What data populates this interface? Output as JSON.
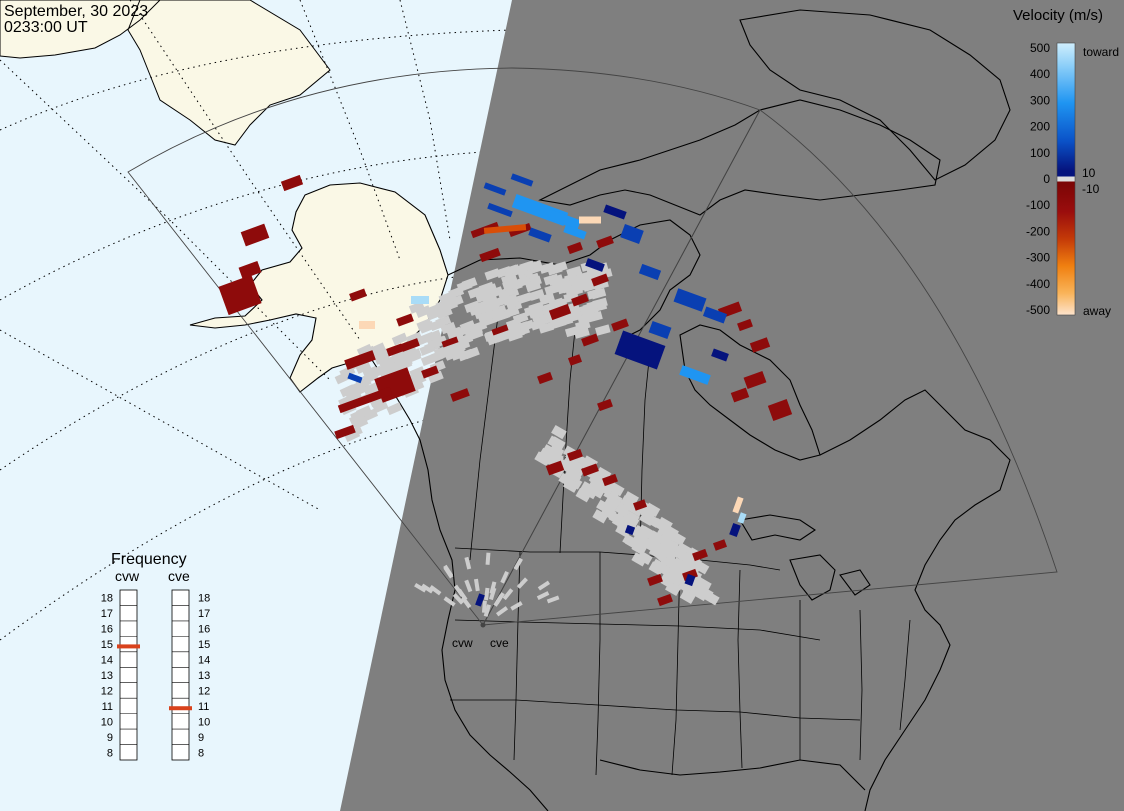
{
  "header": {
    "date": "September, 30 2023",
    "time": "0233:00 UT"
  },
  "colors": {
    "ocean_day": "#e8f6fd",
    "land_day": "#faf8e6",
    "night": "#7f7f7f",
    "gs_scatter": "#cdcdcd",
    "toward_light": "#a9dcf7",
    "toward_mid": "#1f95f2",
    "toward_dark": "#0a3fb2",
    "toward_deepest": "#05137d",
    "away_deepest": "#7a0505",
    "away_dark": "#8e0b0b",
    "away_mid": "#d94e08",
    "away_orange": "#f59a1a",
    "away_light": "#fcd8b6"
  },
  "colorbar": {
    "title": "Velocity (m/s)",
    "ticks": [
      "500",
      "400",
      "300",
      "200",
      "100",
      "0",
      "-100",
      "-200",
      "-300",
      "-400",
      "-500"
    ],
    "small_ticks": [
      "10",
      "-10"
    ],
    "toward_label": "toward",
    "away_label": "away"
  },
  "frequency": {
    "title": "Frequency",
    "radars": [
      {
        "name": "cvw",
        "selected_mhz": 14.85
      },
      {
        "name": "cve",
        "selected_mhz": 10.85
      }
    ],
    "scale_left": [
      "18",
      "17",
      "16",
      "15",
      "14",
      "13",
      "12",
      "11",
      "10",
      "9",
      "8"
    ],
    "scale_right": [
      "18",
      "17",
      "16",
      "15",
      "14",
      "13",
      "12",
      "11",
      "10",
      "9",
      "8"
    ],
    "indicator_color": "#d9421c"
  },
  "map": {
    "radar_labels": [
      "cvw",
      "cve"
    ]
  }
}
